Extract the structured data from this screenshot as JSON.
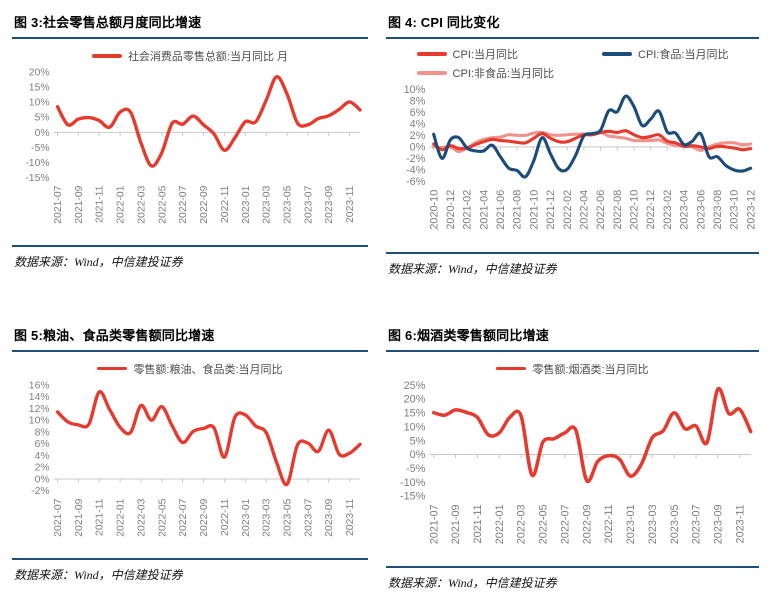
{
  "source_note": "数据来源：Wind，中信建投证券",
  "colors": {
    "accent_red": "#e63a2e",
    "accent_pink": "#f0928d",
    "accent_navy": "#1c4c7c",
    "rule_blue": "#1e4e79",
    "axis_text": "#7f7f7f",
    "axis_line": "#c8c8c8"
  },
  "chart_data": [
    {
      "type": "line",
      "title": "图 3:社会零售总额月度同比增速",
      "xlabel": "",
      "ylabel": "",
      "ylim": [
        -15,
        20
      ],
      "yticks": [
        20,
        15,
        10,
        5,
        0,
        -5,
        -10,
        -15
      ],
      "grid": false,
      "legend_position": "top-center",
      "categories": [
        "2021-07",
        "2021-08",
        "2021-09",
        "2021-10",
        "2021-11",
        "2021-12",
        "2022-01",
        "2022-02",
        "2022-03",
        "2022-04",
        "2022-05",
        "2022-06",
        "2022-07",
        "2022-08",
        "2022-09",
        "2022-10",
        "2022-11",
        "2022-12",
        "2023-01",
        "2023-02",
        "2023-03",
        "2023-04",
        "2023-05",
        "2023-06",
        "2023-07",
        "2023-08",
        "2023-09",
        "2023-10",
        "2023-11",
        "2023-12"
      ],
      "series": [
        {
          "name": "社会消费品零售总额:当月同比 月",
          "color": "#e63a2e",
          "z": 1,
          "values": [
            8.5,
            2.5,
            4.4,
            4.9,
            3.9,
            1.7,
            6.7,
            6.7,
            -3.5,
            -11.1,
            -6.7,
            3.1,
            2.7,
            5.4,
            2.5,
            -0.5,
            -5.9,
            -1.8,
            3.5,
            3.5,
            10.6,
            18.4,
            12.7,
            3.1,
            2.5,
            4.6,
            5.5,
            7.6,
            10.1,
            7.4
          ]
        }
      ]
    },
    {
      "type": "line",
      "title": "图 4: CPI 同比变化",
      "xlabel": "",
      "ylabel": "",
      "ylim": [
        -6,
        10
      ],
      "yticks": [
        10,
        8,
        6,
        4,
        2,
        0,
        -2,
        -4,
        -6
      ],
      "grid": false,
      "legend_position": "top-center",
      "categories": [
        "2020-10",
        "2020-11",
        "2020-12",
        "2021-01",
        "2021-02",
        "2021-03",
        "2021-04",
        "2021-05",
        "2021-06",
        "2021-07",
        "2021-08",
        "2021-09",
        "2021-10",
        "2021-11",
        "2021-12",
        "2022-01",
        "2022-02",
        "2022-03",
        "2022-04",
        "2022-05",
        "2022-06",
        "2022-07",
        "2022-08",
        "2022-09",
        "2022-10",
        "2022-11",
        "2022-12",
        "2023-01",
        "2023-02",
        "2023-03",
        "2023-04",
        "2023-05",
        "2023-06",
        "2023-07",
        "2023-08",
        "2023-09",
        "2023-10",
        "2023-11",
        "2023-12"
      ],
      "series": [
        {
          "name": "CPI:当月同比",
          "color": "#e63a2e",
          "z": 1,
          "values": [
            0.5,
            -0.5,
            0.2,
            -0.3,
            -0.2,
            0.4,
            0.9,
            1.3,
            1.1,
            1.0,
            0.8,
            0.7,
            1.5,
            2.3,
            1.5,
            0.9,
            0.9,
            1.5,
            2.1,
            2.1,
            2.5,
            2.7,
            2.5,
            2.8,
            2.1,
            1.6,
            1.8,
            2.1,
            1.0,
            0.7,
            0.1,
            0.2,
            0.0,
            -0.3,
            0.1,
            0.0,
            -0.2,
            -0.5,
            -0.3
          ]
        },
        {
          "name": "CPI:食品:当月同比",
          "color": "#1c4c7c",
          "z": 2,
          "values": [
            2.2,
            -2.0,
            1.2,
            1.6,
            -0.2,
            -0.7,
            -0.7,
            0.3,
            -1.7,
            -3.7,
            -4.1,
            -5.2,
            -2.4,
            1.6,
            -1.2,
            -3.8,
            -3.9,
            -1.5,
            1.9,
            2.3,
            2.9,
            6.3,
            6.1,
            8.8,
            7.0,
            3.7,
            4.8,
            6.2,
            2.6,
            2.4,
            0.4,
            1.0,
            2.3,
            -1.7,
            -1.7,
            -3.2,
            -4.0,
            -4.2,
            -3.7
          ]
        },
        {
          "name": "CPI:非食品:当月同比",
          "color": "#f0928d",
          "z": 0,
          "values": [
            0.0,
            -0.1,
            0.0,
            -0.8,
            -0.2,
            0.7,
            1.3,
            1.6,
            1.7,
            2.1,
            2.0,
            2.0,
            2.4,
            2.5,
            2.1,
            2.0,
            2.1,
            2.2,
            2.2,
            2.1,
            2.5,
            1.9,
            1.7,
            1.5,
            1.1,
            1.1,
            1.1,
            1.2,
            0.6,
            0.3,
            0.1,
            0.0,
            -0.6,
            0.0,
            0.5,
            0.7,
            0.7,
            0.4,
            0.5
          ]
        }
      ]
    },
    {
      "type": "line",
      "title": "图 5:粮油、食品类零售额同比增速",
      "xlabel": "",
      "ylabel": "",
      "ylim": [
        -2,
        16
      ],
      "yticks": [
        16,
        14,
        12,
        10,
        8,
        6,
        4,
        2,
        0,
        -2
      ],
      "grid": false,
      "legend_position": "top-center",
      "categories": [
        "2021-07",
        "2021-08",
        "2021-09",
        "2021-10",
        "2021-11",
        "2021-12",
        "2022-01",
        "2022-02",
        "2022-03",
        "2022-04",
        "2022-05",
        "2022-06",
        "2022-07",
        "2022-08",
        "2022-09",
        "2022-10",
        "2022-11",
        "2022-12",
        "2023-01",
        "2023-02",
        "2023-03",
        "2023-04",
        "2023-05",
        "2023-06",
        "2023-07",
        "2023-08",
        "2023-09",
        "2023-10",
        "2023-11",
        "2023-12"
      ],
      "series": [
        {
          "name": "零售额:粮油、食品类:当月同比",
          "color": "#e63a2e",
          "z": 1,
          "values": [
            11.4,
            9.7,
            9.2,
            9.3,
            14.8,
            11.8,
            8.8,
            7.9,
            12.5,
            10.0,
            12.3,
            9.0,
            6.2,
            8.1,
            8.6,
            8.7,
            3.7,
            10.5,
            10.9,
            9.0,
            7.9,
            2.8,
            -0.9,
            5.8,
            6.1,
            4.7,
            8.3,
            4.2,
            4.4,
            5.9
          ]
        }
      ]
    },
    {
      "type": "line",
      "title": "图 6:烟酒类零售额同比增速",
      "xlabel": "",
      "ylabel": "",
      "ylim": [
        -15,
        25
      ],
      "yticks": [
        25,
        20,
        15,
        10,
        5,
        0,
        -5,
        -10,
        -15
      ],
      "grid": false,
      "legend_position": "top-center",
      "categories": [
        "2021-07",
        "2021-08",
        "2021-09",
        "2021-10",
        "2021-11",
        "2021-12",
        "2022-01",
        "2022-02",
        "2022-03",
        "2022-04",
        "2022-05",
        "2022-06",
        "2022-07",
        "2022-08",
        "2022-09",
        "2022-10",
        "2022-11",
        "2022-12",
        "2023-01",
        "2023-02",
        "2023-03",
        "2023-04",
        "2023-05",
        "2023-06",
        "2023-07",
        "2023-08",
        "2023-09",
        "2023-10",
        "2023-11",
        "2023-12"
      ],
      "series": [
        {
          "name": "零售额:烟酒类:当月同比",
          "color": "#e63a2e",
          "z": 1,
          "values": [
            15.1,
            14.2,
            16.1,
            15.2,
            13.4,
            7.1,
            7.8,
            13.6,
            13.9,
            -7.5,
            4.5,
            5.7,
            7.8,
            8.8,
            -9.4,
            -2.5,
            -0.4,
            -1.7,
            -7.8,
            -3.5,
            6.1,
            8.6,
            15.1,
            9.3,
            10.3,
            4.3,
            23.6,
            14.8,
            16.3,
            8.3
          ]
        }
      ]
    }
  ]
}
